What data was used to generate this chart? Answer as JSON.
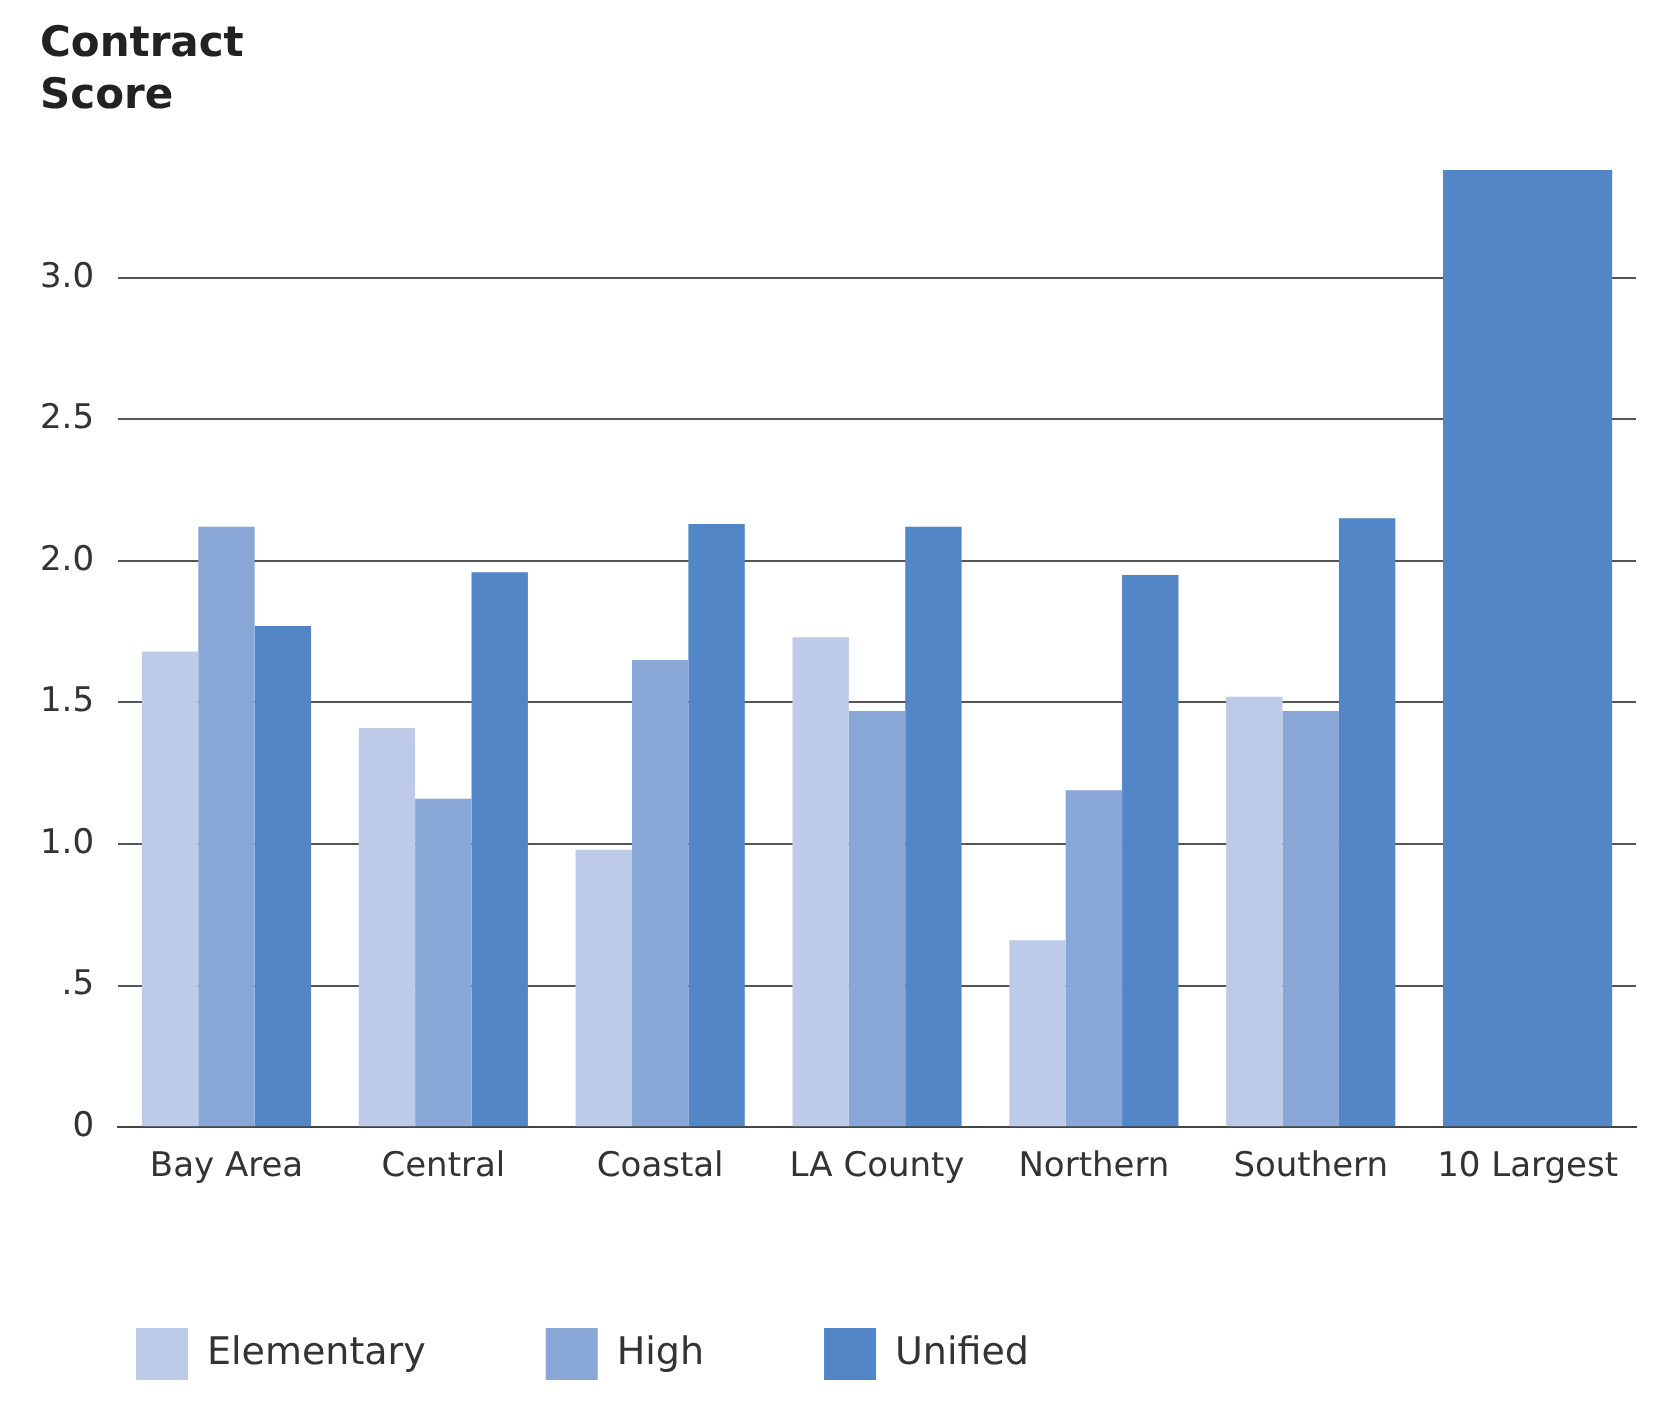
{
  "chart_data": {
    "type": "bar",
    "ylabel": "Contract Score",
    "categories": [
      "Bay Area",
      "Central",
      "Coastal",
      "LA County",
      "Northern",
      "Southern",
      "10 Largest"
    ],
    "series": [
      {
        "name": "Elementary",
        "color": "#bdcbe8",
        "values": [
          1.68,
          1.41,
          0.98,
          1.73,
          0.66,
          1.52,
          null
        ]
      },
      {
        "name": "High",
        "color": "#88a6d6",
        "values": [
          2.12,
          1.16,
          1.65,
          1.47,
          1.19,
          1.47,
          null
        ]
      },
      {
        "name": "Unified",
        "color": "#5286c6",
        "values": [
          1.77,
          1.96,
          2.13,
          2.12,
          1.95,
          2.15,
          3.38
        ]
      }
    ],
    "ylim": [
      0,
      3.4
    ],
    "yticks": [
      {
        "value": 0,
        "label": "0"
      },
      {
        "value": 0.5,
        "label": ".5"
      },
      {
        "value": 1,
        "label": "1.0"
      },
      {
        "value": 1.5,
        "label": "1.5"
      },
      {
        "value": 2,
        "label": "2.0"
      },
      {
        "value": 2.5,
        "label": "2.5"
      },
      {
        "value": 3,
        "label": "3.0"
      }
    ],
    "grid": "y",
    "legend": "bottom"
  }
}
